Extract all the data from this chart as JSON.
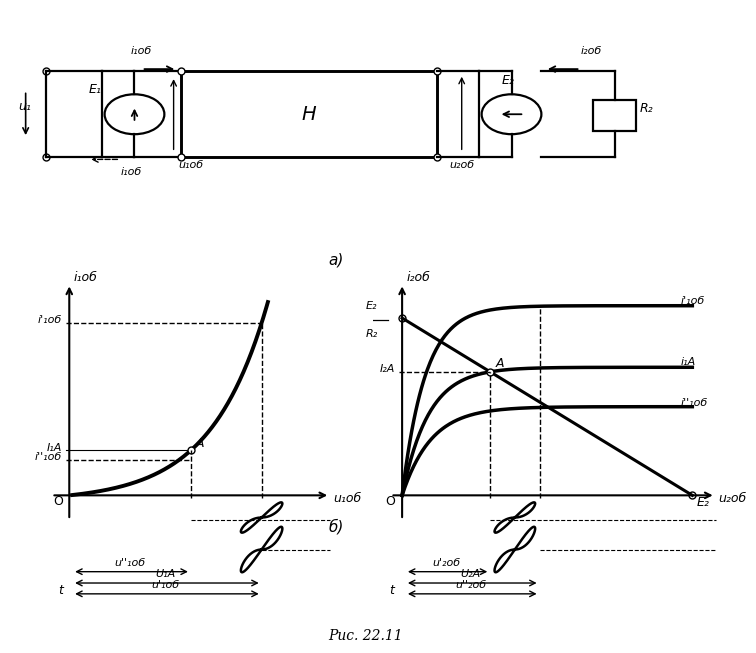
{
  "title": "Рис. 22.11",
  "bg_color": "#ffffff",
  "circuit": {
    "E1_label": "E₁",
    "E2_label": "E₂",
    "H_label": "H",
    "R2_label": "R₂",
    "u1_label": "u₁",
    "u1ob_label": "u₁об",
    "u2ob_label": "u₂об",
    "i1ob_top_label": "i₁об",
    "i1ob_bot_label": "i₁об",
    "i2ob_label": "i₂об"
  },
  "subplot_a_label": "а)",
  "subplot_b_label": "б)",
  "left_plot": {
    "ylabel": "i₁об",
    "xlabel": "u₁об",
    "curve_label_i1prime": "i'₁об",
    "curve_label_i1dbl": "i''₁об",
    "label_I1A": "I₁А",
    "label_A": "A",
    "label_U1A": "U₁А",
    "label_u1ob_prime": "u'₁об",
    "label_u1ob_dbl": "u''₁об",
    "label_t": "t",
    "label_O": "O"
  },
  "right_plot": {
    "ylabel": "i₂об",
    "xlabel": "u₂об",
    "label_I2A": "I₂А",
    "label_A": "A",
    "label_E2": "E₂",
    "label_i1ob_prime": "i'₁об",
    "label_i1A": "i₁А",
    "label_i1ob_dbl": "i''₁об",
    "label_U2A": "U₂А",
    "label_u2ob_prime": "u'₂об",
    "label_u2ob_dbl": "u''₂об",
    "label_t": "t",
    "label_O": "O"
  }
}
